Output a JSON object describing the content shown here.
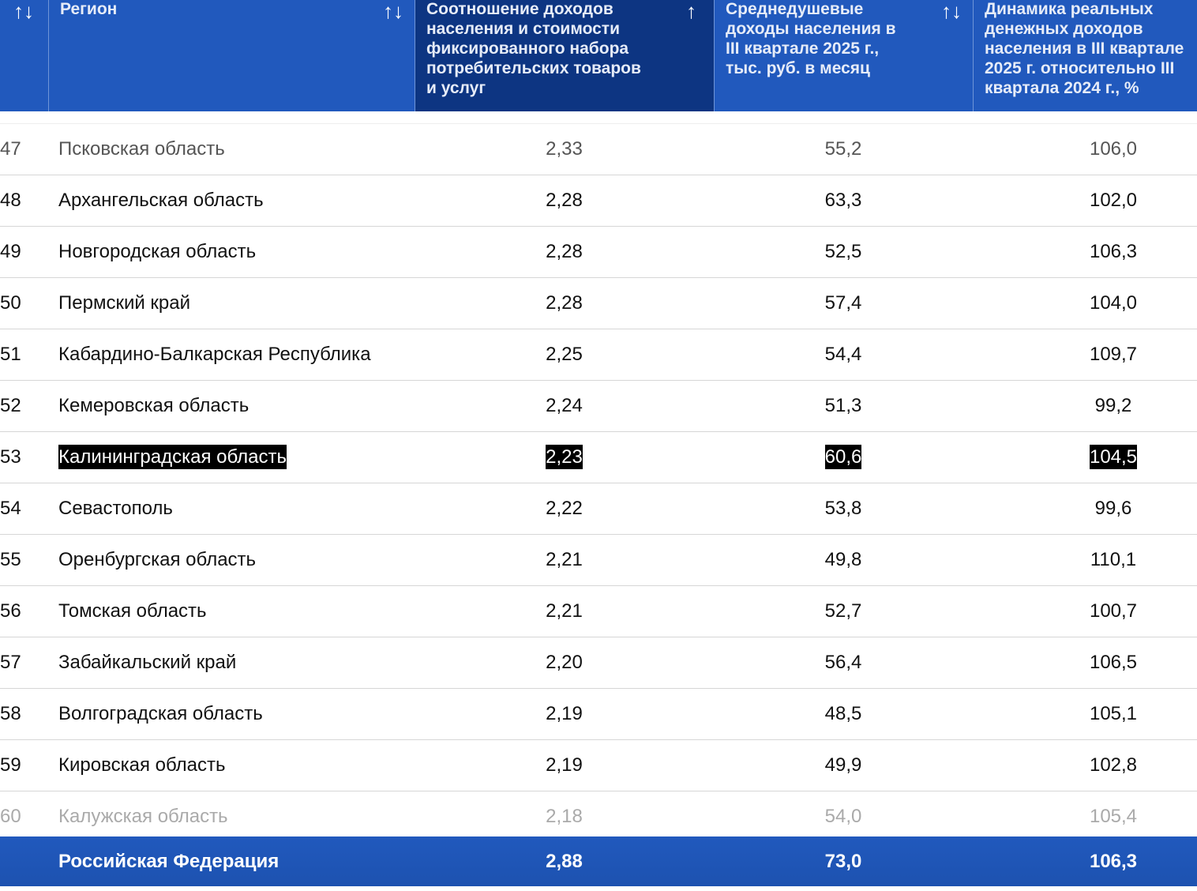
{
  "header": {
    "columns": [
      {
        "label": "",
        "sort_icon": "↑↓"
      },
      {
        "label": "Регион",
        "sort_icon": "↑↓"
      },
      {
        "label": "Соотношение доходов населения и стоимости фиксированного набора потребительских товаров и услуг",
        "sort_icon": "↑"
      },
      {
        "label": "Среднедушевые доходы населения в III квартале 2025 г., тыс. руб. в месяц",
        "sort_icon": "↑↓"
      },
      {
        "label": "Динамика реальных денежных доходов населения в III квартале 2025 г. относительно III квартала 2024 г., %"
      }
    ]
  },
  "rows": [
    {
      "rank": "47",
      "region": "Псковская область",
      "ratio": "2,33",
      "income": "55,2",
      "dynamics": "106,0"
    },
    {
      "rank": "48",
      "region": "Архангельская область",
      "ratio": "2,28",
      "income": "63,3",
      "dynamics": "102,0"
    },
    {
      "rank": "49",
      "region": "Новгородская область",
      "ratio": "2,28",
      "income": "52,5",
      "dynamics": "106,3"
    },
    {
      "rank": "50",
      "region": "Пермский край",
      "ratio": "2,28",
      "income": "57,4",
      "dynamics": "104,0"
    },
    {
      "rank": "51",
      "region": "Кабардино-Балкарская Республика",
      "ratio": "2,25",
      "income": "54,4",
      "dynamics": "109,7"
    },
    {
      "rank": "52",
      "region": "Кемеровская область",
      "ratio": "2,24",
      "income": "51,3",
      "dynamics": "99,2"
    },
    {
      "rank": "53",
      "region": "Калининградская область",
      "ratio": "2,23",
      "income": "60,6",
      "dynamics": "104,5"
    },
    {
      "rank": "54",
      "region": "Севастополь",
      "ratio": "2,22",
      "income": "53,8",
      "dynamics": "99,6"
    },
    {
      "rank": "55",
      "region": "Оренбургская область",
      "ratio": "2,21",
      "income": "49,8",
      "dynamics": "110,1"
    },
    {
      "rank": "56",
      "region": "Томская область",
      "ratio": "2,21",
      "income": "52,7",
      "dynamics": "100,7"
    },
    {
      "rank": "57",
      "region": "Забайкальский край",
      "ratio": "2,20",
      "income": "56,4",
      "dynamics": "106,5"
    },
    {
      "rank": "58",
      "region": "Волгоградская область",
      "ratio": "2,19",
      "income": "48,5",
      "dynamics": "105,1"
    },
    {
      "rank": "59",
      "region": "Кировская область",
      "ratio": "2,19",
      "income": "49,9",
      "dynamics": "102,8"
    },
    {
      "rank": "60",
      "region": "Калужская область",
      "ratio": "2,18",
      "income": "54,0",
      "dynamics": "105,4"
    }
  ],
  "highlighted_rank": "53",
  "footer": {
    "region": "Российская Федерация",
    "ratio": "2,88",
    "income": "73,0",
    "dynamics": "106,3"
  },
  "colors": {
    "header": "#2159bd",
    "header_active": "#0d3582",
    "highlight": "#000000"
  }
}
